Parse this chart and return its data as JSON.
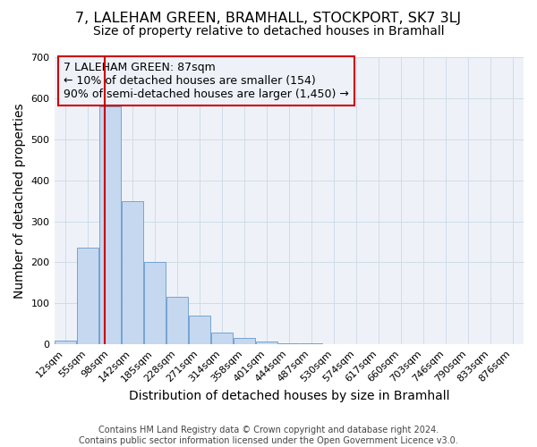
{
  "title": "7, LALEHAM GREEN, BRAMHALL, STOCKPORT, SK7 3LJ",
  "subtitle": "Size of property relative to detached houses in Bramhall",
  "xlabel": "Distribution of detached houses by size in Bramhall",
  "ylabel": "Number of detached properties",
  "footer_line1": "Contains HM Land Registry data © Crown copyright and database right 2024.",
  "footer_line2": "Contains public sector information licensed under the Open Government Licence v3.0.",
  "bin_labels": [
    "12sqm",
    "55sqm",
    "98sqm",
    "142sqm",
    "185sqm",
    "228sqm",
    "271sqm",
    "314sqm",
    "358sqm",
    "401sqm",
    "444sqm",
    "487sqm",
    "530sqm",
    "574sqm",
    "617sqm",
    "660sqm",
    "703sqm",
    "746sqm",
    "790sqm",
    "833sqm",
    "876sqm"
  ],
  "bar_heights": [
    10,
    235,
    580,
    350,
    200,
    115,
    70,
    28,
    15,
    6,
    3,
    2,
    1,
    0,
    0,
    0,
    0,
    0,
    0,
    0,
    0
  ],
  "bar_color": "#c5d8f0",
  "bar_edge_color": "#6699cc",
  "grid_color": "#d0dce8",
  "annotation_box_text": "7 LALEHAM GREEN: 87sqm\n← 10% of detached houses are smaller (154)\n90% of semi-detached houses are larger (1,450) →",
  "annotation_box_color": "#cc0000",
  "red_line_color": "#cc0000",
  "ylim": [
    0,
    700
  ],
  "yticks": [
    0,
    100,
    200,
    300,
    400,
    500,
    600,
    700
  ],
  "background_color": "#ffffff",
  "plot_bg_color": "#eef2f8",
  "title_fontsize": 11.5,
  "subtitle_fontsize": 10,
  "axis_label_fontsize": 10,
  "tick_fontsize": 8,
  "footer_fontsize": 7,
  "ann_fontsize": 9
}
